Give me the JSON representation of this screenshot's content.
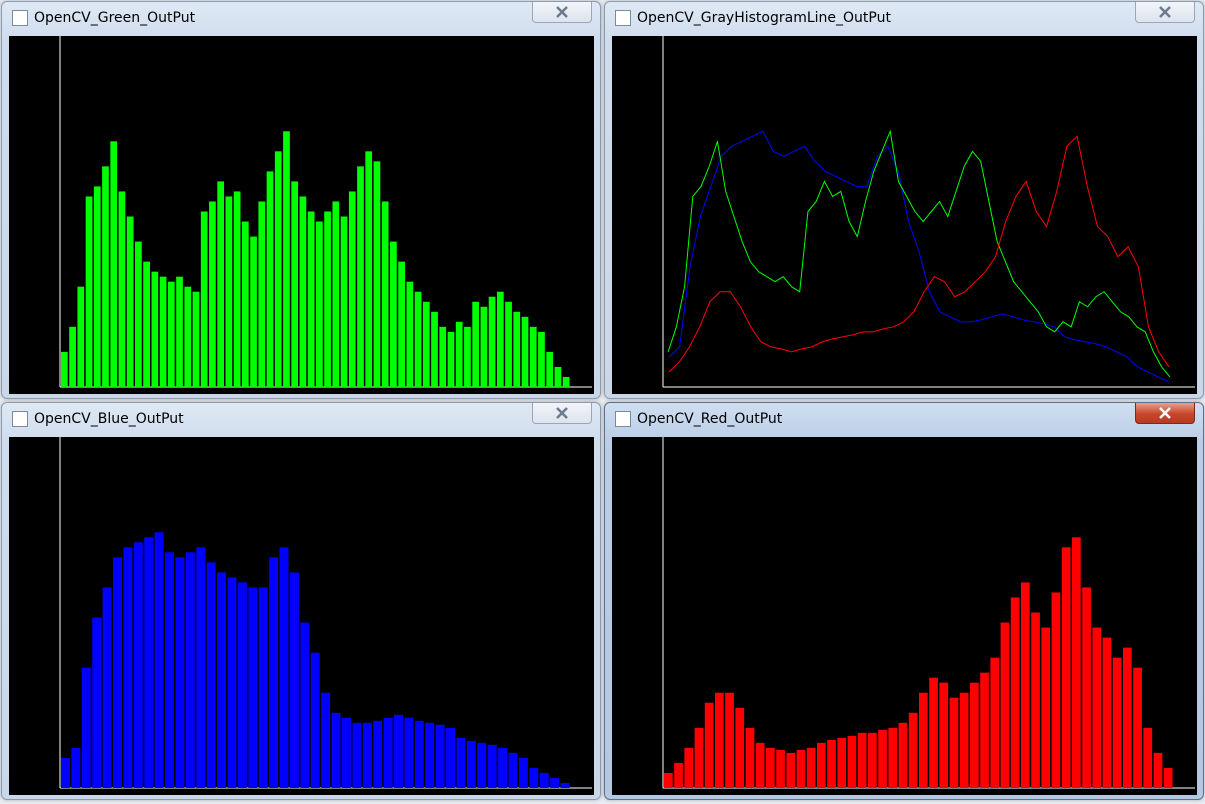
{
  "ylim": [
    0,
    350
  ],
  "windows": [
    {
      "title": "OpenCV_Green_OutPut",
      "bars": {
        "color": "#00ff00",
        "values": [
          35,
          60,
          100,
          190,
          200,
          220,
          245,
          195,
          170,
          145,
          125,
          115,
          110,
          105,
          110,
          100,
          95,
          175,
          185,
          205,
          190,
          195,
          165,
          150,
          185,
          215,
          235,
          255,
          205,
          190,
          175,
          165,
          175,
          185,
          170,
          195,
          220,
          235,
          225,
          185,
          145,
          125,
          105,
          95,
          85,
          75,
          60,
          55,
          65,
          60,
          85,
          80,
          90,
          95,
          85,
          75,
          70,
          60,
          55,
          35,
          20,
          10
        ]
      }
    },
    {
      "title": "OpenCV_GrayHistogramLine_OutPut"
    },
    {
      "title": "OpenCV_Blue_OutPut",
      "bars": {
        "color": "#0000ff",
        "values": [
          30,
          40,
          120,
          170,
          200,
          230,
          240,
          245,
          250,
          255,
          235,
          230,
          235,
          240,
          225,
          215,
          210,
          205,
          200,
          200,
          230,
          240,
          215,
          165,
          135,
          95,
          75,
          70,
          65,
          65,
          67,
          70,
          73,
          70,
          67,
          65,
          63,
          60,
          50,
          47,
          45,
          43,
          40,
          35,
          30,
          20,
          15,
          10,
          5
        ]
      }
    },
    {
      "title": "OpenCV_Red_OutPut",
      "bars": {
        "color": "#ff0000",
        "values": [
          15,
          25,
          40,
          60,
          85,
          95,
          95,
          80,
          60,
          45,
          40,
          38,
          35,
          38,
          40,
          45,
          48,
          50,
          52,
          55,
          55,
          58,
          60,
          65,
          75,
          95,
          110,
          105,
          90,
          95,
          105,
          115,
          130,
          165,
          190,
          205,
          175,
          160,
          195,
          240,
          250,
          200,
          160,
          150,
          130,
          140,
          120,
          60,
          35,
          20
        ]
      }
    }
  ]
}
